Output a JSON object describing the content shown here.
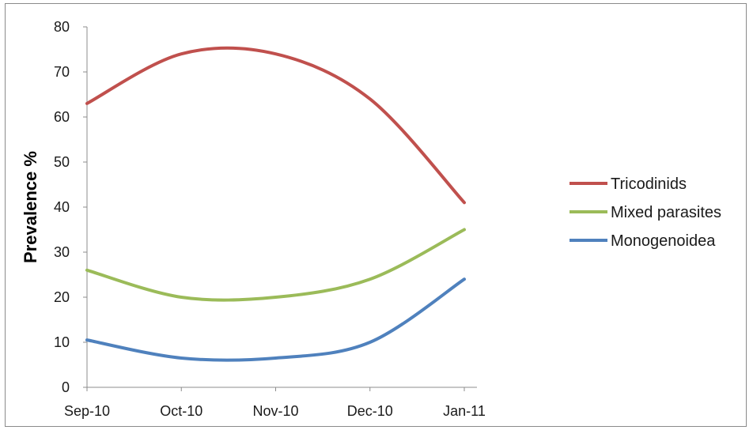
{
  "chart_data": {
    "type": "line",
    "categories": [
      "Sep-10",
      "Oct-10",
      "Nov-10",
      "Dec-10",
      "Jan-11"
    ],
    "ylabel": "Prevalence  %",
    "xlabel": "",
    "ylim": [
      0,
      80
    ],
    "yticks": [
      "0",
      "10",
      "20",
      "30",
      "40",
      "50",
      "60",
      "70",
      "80"
    ],
    "grid": false,
    "legend_position": "right",
    "smooth": true,
    "series": [
      {
        "name": "Tricodinids",
        "values": [
          63,
          74,
          74,
          64,
          41
        ],
        "color": "#c0504d"
      },
      {
        "name": "Mixed parasites",
        "values": [
          26,
          20,
          20,
          24,
          35
        ],
        "color": "#9bbb59"
      },
      {
        "name": "Monogenoidea",
        "values": [
          10.5,
          6.5,
          6.5,
          10,
          24
        ],
        "color": "#4f81bd"
      }
    ]
  }
}
